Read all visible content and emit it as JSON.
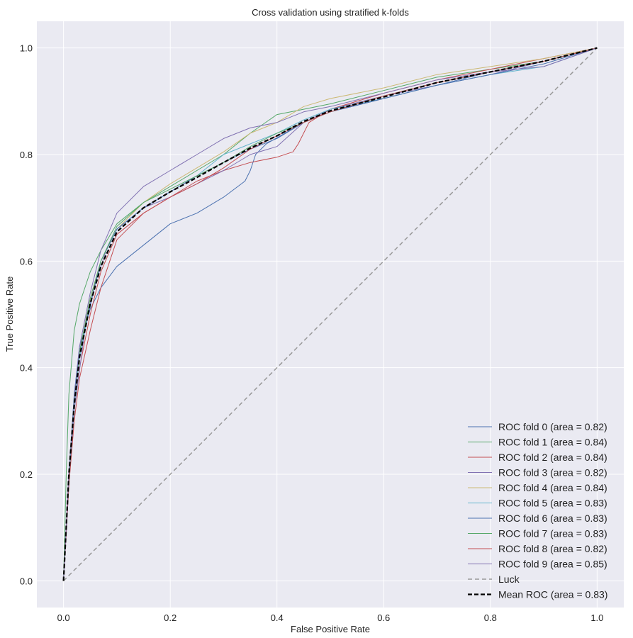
{
  "chart_data": {
    "type": "line",
    "title": "Cross validation using stratified k-folds",
    "xlabel": "False Positive Rate",
    "ylabel": "True Positive Rate",
    "xlim": [
      -0.05,
      1.05
    ],
    "ylim": [
      -0.05,
      1.05
    ],
    "xticks": [
      "0.0",
      "0.2",
      "0.4",
      "0.6",
      "0.8",
      "1.0"
    ],
    "yticks": [
      "0.0",
      "0.2",
      "0.4",
      "0.6",
      "0.8",
      "1.0"
    ],
    "grid": true,
    "legend_position": "lower-right",
    "series": [
      {
        "name": "ROC fold 0 (area = 0.82)",
        "color": "#4C72B0",
        "style": "solid",
        "x": [
          0,
          0.01,
          0.02,
          0.03,
          0.05,
          0.07,
          0.1,
          0.15,
          0.2,
          0.25,
          0.3,
          0.34,
          0.35,
          0.36,
          0.38,
          0.45,
          0.5,
          0.6,
          0.7,
          0.8,
          0.9,
          1.0
        ],
        "y": [
          0,
          0.2,
          0.35,
          0.44,
          0.51,
          0.55,
          0.59,
          0.63,
          0.67,
          0.69,
          0.72,
          0.75,
          0.77,
          0.8,
          0.82,
          0.86,
          0.88,
          0.905,
          0.93,
          0.955,
          0.975,
          1.0
        ]
      },
      {
        "name": "ROC fold 1 (area = 0.84)",
        "color": "#55A868",
        "style": "solid",
        "x": [
          0,
          0.005,
          0.01,
          0.02,
          0.03,
          0.05,
          0.07,
          0.1,
          0.15,
          0.2,
          0.25,
          0.3,
          0.35,
          0.4,
          0.45,
          0.5,
          0.6,
          0.7,
          0.8,
          0.9,
          1.0
        ],
        "y": [
          0,
          0.2,
          0.35,
          0.47,
          0.52,
          0.58,
          0.62,
          0.67,
          0.71,
          0.74,
          0.77,
          0.8,
          0.84,
          0.875,
          0.885,
          0.895,
          0.92,
          0.945,
          0.96,
          0.975,
          1.0
        ]
      },
      {
        "name": "ROC fold 2 (area = 0.84)",
        "color": "#C44E52",
        "style": "solid",
        "x": [
          0,
          0.01,
          0.02,
          0.03,
          0.05,
          0.07,
          0.1,
          0.15,
          0.2,
          0.25,
          0.3,
          0.35,
          0.4,
          0.43,
          0.44,
          0.46,
          0.5,
          0.6,
          0.7,
          0.8,
          0.9,
          1.0
        ],
        "y": [
          0,
          0.2,
          0.32,
          0.4,
          0.5,
          0.58,
          0.65,
          0.69,
          0.72,
          0.75,
          0.77,
          0.785,
          0.795,
          0.805,
          0.82,
          0.86,
          0.885,
          0.915,
          0.94,
          0.96,
          0.98,
          1.0
        ]
      },
      {
        "name": "ROC fold 3 (area = 0.82)",
        "color": "#8172B2",
        "style": "solid",
        "x": [
          0,
          0.01,
          0.02,
          0.04,
          0.06,
          0.08,
          0.1,
          0.15,
          0.2,
          0.25,
          0.3,
          0.35,
          0.4,
          0.45,
          0.5,
          0.6,
          0.7,
          0.8,
          0.9,
          1.0
        ],
        "y": [
          0,
          0.18,
          0.32,
          0.47,
          0.56,
          0.62,
          0.66,
          0.7,
          0.72,
          0.745,
          0.77,
          0.8,
          0.815,
          0.86,
          0.885,
          0.91,
          0.93,
          0.95,
          0.975,
          1.0
        ]
      },
      {
        "name": "ROC fold 4 (area = 0.84)",
        "color": "#CCB974",
        "style": "solid",
        "x": [
          0,
          0.01,
          0.02,
          0.03,
          0.05,
          0.07,
          0.1,
          0.15,
          0.2,
          0.25,
          0.3,
          0.35,
          0.4,
          0.45,
          0.5,
          0.6,
          0.7,
          0.8,
          0.9,
          1.0
        ],
        "y": [
          0,
          0.2,
          0.34,
          0.43,
          0.53,
          0.6,
          0.66,
          0.71,
          0.745,
          0.775,
          0.805,
          0.84,
          0.86,
          0.89,
          0.905,
          0.925,
          0.95,
          0.965,
          0.98,
          1.0
        ]
      },
      {
        "name": "ROC fold 5 (area = 0.83)",
        "color": "#64B5CD",
        "style": "solid",
        "x": [
          0,
          0.01,
          0.02,
          0.03,
          0.05,
          0.07,
          0.1,
          0.15,
          0.2,
          0.25,
          0.3,
          0.35,
          0.4,
          0.45,
          0.5,
          0.6,
          0.7,
          0.8,
          0.9,
          1.0
        ],
        "y": [
          0,
          0.19,
          0.33,
          0.42,
          0.52,
          0.6,
          0.66,
          0.7,
          0.73,
          0.76,
          0.8,
          0.82,
          0.84,
          0.865,
          0.885,
          0.905,
          0.93,
          0.95,
          0.965,
          1.0
        ]
      },
      {
        "name": "ROC fold 6 (area = 0.83)",
        "color": "#4C72B0",
        "style": "solid",
        "x": [
          0,
          0.01,
          0.02,
          0.03,
          0.05,
          0.07,
          0.1,
          0.15,
          0.2,
          0.25,
          0.3,
          0.35,
          0.4,
          0.45,
          0.5,
          0.6,
          0.7,
          0.8,
          0.9,
          1.0
        ],
        "y": [
          0,
          0.2,
          0.34,
          0.43,
          0.52,
          0.6,
          0.66,
          0.7,
          0.73,
          0.76,
          0.785,
          0.81,
          0.83,
          0.86,
          0.88,
          0.905,
          0.93,
          0.95,
          0.97,
          1.0
        ]
      },
      {
        "name": "ROC fold 7 (area = 0.83)",
        "color": "#55A868",
        "style": "solid",
        "x": [
          0,
          0.01,
          0.02,
          0.03,
          0.05,
          0.07,
          0.1,
          0.15,
          0.2,
          0.25,
          0.3,
          0.35,
          0.4,
          0.45,
          0.5,
          0.6,
          0.7,
          0.8,
          0.9,
          1.0
        ],
        "y": [
          0,
          0.2,
          0.34,
          0.43,
          0.53,
          0.6,
          0.665,
          0.71,
          0.735,
          0.76,
          0.785,
          0.815,
          0.84,
          0.86,
          0.88,
          0.91,
          0.935,
          0.955,
          0.975,
          1.0
        ]
      },
      {
        "name": "ROC fold 8 (area = 0.82)",
        "color": "#C44E52",
        "style": "solid",
        "x": [
          0,
          0.01,
          0.02,
          0.03,
          0.05,
          0.07,
          0.1,
          0.15,
          0.2,
          0.25,
          0.3,
          0.35,
          0.4,
          0.45,
          0.5,
          0.6,
          0.7,
          0.8,
          0.9,
          1.0
        ],
        "y": [
          0,
          0.18,
          0.3,
          0.38,
          0.47,
          0.55,
          0.64,
          0.69,
          0.72,
          0.745,
          0.775,
          0.81,
          0.835,
          0.86,
          0.88,
          0.91,
          0.935,
          0.955,
          0.975,
          1.0
        ]
      },
      {
        "name": "ROC fold 9 (area = 0.85)",
        "color": "#8172B2",
        "style": "solid",
        "x": [
          0,
          0.01,
          0.02,
          0.03,
          0.05,
          0.07,
          0.1,
          0.15,
          0.2,
          0.25,
          0.3,
          0.35,
          0.4,
          0.45,
          0.5,
          0.6,
          0.7,
          0.8,
          0.9,
          1.0
        ],
        "y": [
          0,
          0.2,
          0.34,
          0.44,
          0.54,
          0.62,
          0.69,
          0.74,
          0.77,
          0.8,
          0.83,
          0.85,
          0.86,
          0.88,
          0.89,
          0.915,
          0.94,
          0.955,
          0.965,
          1.0
        ]
      },
      {
        "name": "Luck",
        "color": "#999999",
        "style": "dashed",
        "x": [
          0,
          1
        ],
        "y": [
          0,
          1
        ]
      },
      {
        "name": "Mean ROC (area = 0.83)",
        "color": "#000000",
        "style": "dashed-bold",
        "x": [
          0,
          0.01,
          0.02,
          0.03,
          0.05,
          0.07,
          0.1,
          0.15,
          0.2,
          0.25,
          0.3,
          0.35,
          0.4,
          0.45,
          0.5,
          0.6,
          0.7,
          0.8,
          0.9,
          1.0
        ],
        "y": [
          0,
          0.2,
          0.33,
          0.42,
          0.52,
          0.59,
          0.655,
          0.7,
          0.73,
          0.757,
          0.785,
          0.812,
          0.835,
          0.862,
          0.882,
          0.908,
          0.935,
          0.955,
          0.975,
          1.0
        ]
      }
    ]
  }
}
